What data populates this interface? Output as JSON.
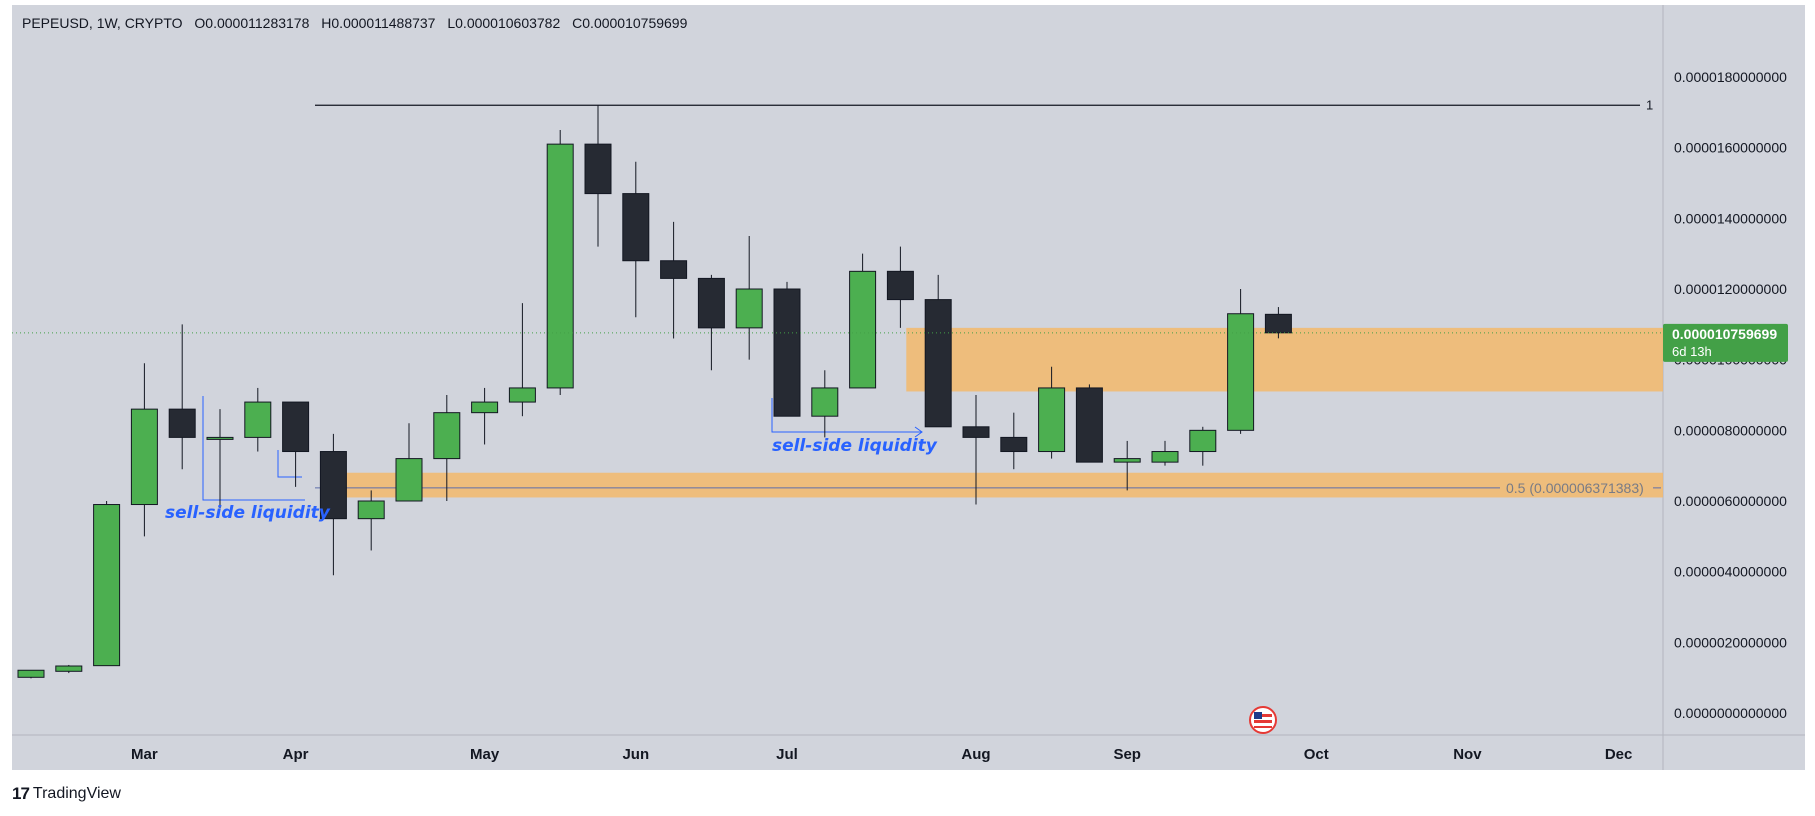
{
  "header": {
    "symbol": "PEPEUSD, 1W, CRYPTO",
    "open": "O0.000011283178",
    "high": "H0.000011488737",
    "low": "L0.000010603782",
    "close": "C0.000010759699"
  },
  "price_badge": {
    "price": "0.000010759699",
    "countdown": "6d 13h"
  },
  "brand": {
    "name": "TradingView"
  },
  "colors": {
    "up": "#4caf50",
    "down": "#262a33",
    "zone": "#f3b96b",
    "background": "#d1d4dc",
    "annotation": "#2962ff",
    "badge": "#43a047"
  },
  "chart_data": {
    "type": "candlestick",
    "title": "PEPEUSD, 1W, CRYPTO",
    "y_axis": {
      "min": 0,
      "max": 1.8e-05,
      "ticks": [
        "0.0000180000000",
        "0.0000160000000",
        "0.0000140000000",
        "0.0000120000000",
        "0.0000100000000",
        "0.0000080000000",
        "0.0000060000000",
        "0.0000040000000",
        "0.0000020000000",
        "0.0000000000000"
      ],
      "tick_values": [
        1.8e-05,
        1.6e-05,
        1.4e-05,
        1.2e-05,
        1e-05,
        8e-06,
        6e-06,
        4e-06,
        2e-06,
        0
      ]
    },
    "x_axis": {
      "labels": [
        "Mar",
        "Apr",
        "May",
        "Jun",
        "Jul",
        "Aug",
        "Sep",
        "Oct",
        "Nov",
        "Dec"
      ],
      "label_week_index": [
        3,
        7,
        12,
        16,
        20,
        25,
        29,
        34,
        38,
        42
      ]
    },
    "candles": [
      {
        "o": 1.01e-06,
        "h": 1.16e-06,
        "l": 9.8e-07,
        "c": 1.21e-06
      },
      {
        "o": 1.18e-06,
        "h": 1.36e-06,
        "l": 1.13e-06,
        "c": 1.33e-06
      },
      {
        "o": 1.34e-06,
        "h": 6e-06,
        "l": 1.33e-06,
        "c": 5.9e-06
      },
      {
        "o": 5.9e-06,
        "h": 9.9e-06,
        "l": 5e-06,
        "c": 8.6e-06
      },
      {
        "o": 8.6e-06,
        "h": 1.1e-05,
        "l": 6.9e-06,
        "c": 7.8e-06
      },
      {
        "o": 7.8e-06,
        "h": 8.6e-06,
        "l": 5.8e-06,
        "c": 7.8e-06
      },
      {
        "o": 7.8e-06,
        "h": 9.2e-06,
        "l": 7.4e-06,
        "c": 8.8e-06
      },
      {
        "o": 8.8e-06,
        "h": 8.8e-06,
        "l": 6.4e-06,
        "c": 7.4e-06
      },
      {
        "o": 7.4e-06,
        "h": 7.9e-06,
        "l": 3.9e-06,
        "c": 5.5e-06
      },
      {
        "o": 5.5e-06,
        "h": 6.3e-06,
        "l": 4.6e-06,
        "c": 6e-06
      },
      {
        "o": 6e-06,
        "h": 8.2e-06,
        "l": 6e-06,
        "c": 7.2e-06
      },
      {
        "o": 7.2e-06,
        "h": 9e-06,
        "l": 6e-06,
        "c": 8.5e-06
      },
      {
        "o": 8.5e-06,
        "h": 9.2e-06,
        "l": 7.6e-06,
        "c": 8.8e-06
      },
      {
        "o": 8.8e-06,
        "h": 1.16e-05,
        "l": 8.4e-06,
        "c": 9.2e-06
      },
      {
        "o": 9.2e-06,
        "h": 1.65e-05,
        "l": 9e-06,
        "c": 1.61e-05
      },
      {
        "o": 1.61e-05,
        "h": 1.72e-05,
        "l": 1.32e-05,
        "c": 1.47e-05
      },
      {
        "o": 1.47e-05,
        "h": 1.56e-05,
        "l": 1.12e-05,
        "c": 1.28e-05
      },
      {
        "o": 1.28e-05,
        "h": 1.39e-05,
        "l": 1.06e-05,
        "c": 1.23e-05
      },
      {
        "o": 1.23e-05,
        "h": 1.24e-05,
        "l": 9.7e-06,
        "c": 1.09e-05
      },
      {
        "o": 1.09e-05,
        "h": 1.35e-05,
        "l": 1e-05,
        "c": 1.2e-05
      },
      {
        "o": 1.2e-05,
        "h": 1.22e-05,
        "l": 8.4e-06,
        "c": 8.4e-06
      },
      {
        "o": 8.4e-06,
        "h": 9.7e-06,
        "l": 7.8e-06,
        "c": 9.2e-06
      },
      {
        "o": 9.2e-06,
        "h": 1.3e-05,
        "l": 9.2e-06,
        "c": 1.25e-05
      },
      {
        "o": 1.25e-05,
        "h": 1.32e-05,
        "l": 1.09e-05,
        "c": 1.17e-05
      },
      {
        "o": 1.17e-05,
        "h": 1.24e-05,
        "l": 8.1e-06,
        "c": 8.1e-06
      },
      {
        "o": 8.1e-06,
        "h": 9e-06,
        "l": 5.9e-06,
        "c": 7.8e-06
      },
      {
        "o": 7.8e-06,
        "h": 8.5e-06,
        "l": 6.9e-06,
        "c": 7.4e-06
      },
      {
        "o": 7.4e-06,
        "h": 9.8e-06,
        "l": 7.2e-06,
        "c": 9.2e-06
      },
      {
        "o": 9.2e-06,
        "h": 9.3e-06,
        "l": 7.1e-06,
        "c": 7.1e-06
      },
      {
        "o": 7.1e-06,
        "h": 7.7e-06,
        "l": 6.3e-06,
        "c": 7.2e-06
      },
      {
        "o": 7.1e-06,
        "h": 7.7e-06,
        "l": 7e-06,
        "c": 7.4e-06
      },
      {
        "o": 7.4e-06,
        "h": 8.1e-06,
        "l": 7e-06,
        "c": 8e-06
      },
      {
        "o": 8e-06,
        "h": 1.2e-05,
        "l": 7.9e-06,
        "c": 1.13e-05
      },
      {
        "o": 1.1283178e-05,
        "h": 1.1488737e-05,
        "l": 1.0603782e-05,
        "c": 1.0759699e-05
      }
    ],
    "zones": [
      {
        "from_week": 23.5,
        "to": "right",
        "top": 1.09e-05,
        "bottom": 9.1e-06
      },
      {
        "from_week": 8.5,
        "to": "right",
        "top": 6.8e-06,
        "bottom": 6.1e-06
      }
    ],
    "fib_lines": [
      {
        "label": "1",
        "value": 1.72e-05,
        "from_week": 7.5
      },
      {
        "label": "0.5 (0.000006371383)",
        "value": 6.371383e-06,
        "from_week": 7.5
      }
    ],
    "annotations": [
      {
        "text": "sell-side liquidity",
        "week": 5,
        "value": 5.1e-06
      },
      {
        "text": "sell-side liquidity",
        "week": 22,
        "value": 7e-06
      }
    ]
  }
}
